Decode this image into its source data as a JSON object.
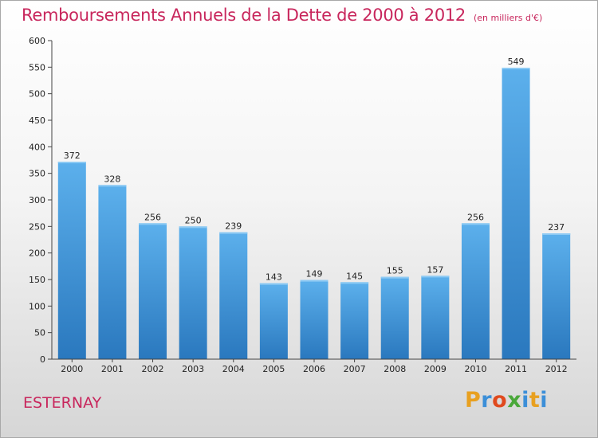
{
  "chart_data": {
    "type": "bar",
    "title": "Remboursements Annuels de la Dette de 2000 à 2012",
    "unit_note": "(en milliers d'€)",
    "categories": [
      "2000",
      "2001",
      "2002",
      "2003",
      "2004",
      "2005",
      "2006",
      "2007",
      "2008",
      "2009",
      "2010",
      "2011",
      "2012"
    ],
    "values": [
      372,
      328,
      256,
      250,
      239,
      143,
      149,
      145,
      155,
      157,
      256,
      549,
      237
    ],
    "ylim": [
      0,
      600
    ],
    "yticks": [
      0,
      50,
      100,
      150,
      200,
      250,
      300,
      350,
      400,
      450,
      500,
      550,
      600
    ],
    "xlabel": "",
    "ylabel": "",
    "grid": false,
    "bar_color": "#3a8fd6",
    "bar_highlight": "#5aaee9"
  },
  "commune": "ESTERNAY",
  "logo": {
    "letters": [
      "P",
      "r",
      "o",
      "x",
      "i",
      "t",
      "i"
    ],
    "colors": [
      "#e8a020",
      "#3c8fd8",
      "#e04a1e",
      "#4aa83a",
      "#3c8fd8",
      "#e8a020",
      "#3c8fd8"
    ]
  }
}
